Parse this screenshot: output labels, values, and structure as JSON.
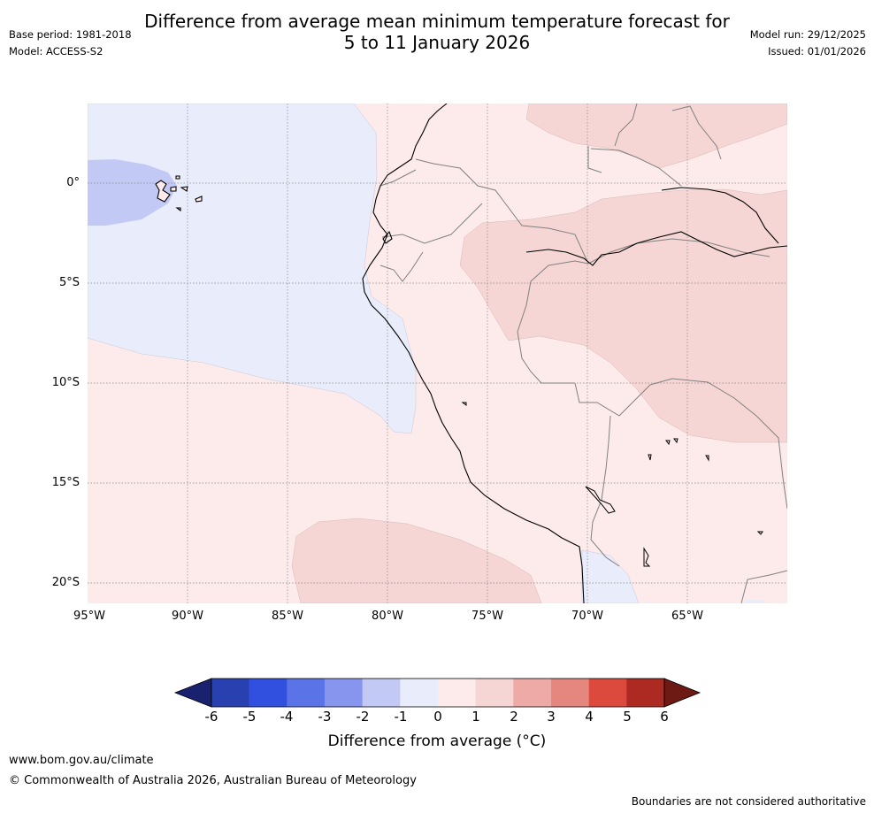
{
  "header": {
    "title_line1": "Difference from average mean minimum temperature forecast for",
    "title_line2": "5 to 11 January 2026",
    "base_period": "Base period: 1981-2018",
    "model": "Model: ACCESS-S2",
    "model_run": "Model run: 29/12/2025",
    "issued": "Issued: 01/01/2026"
  },
  "map": {
    "lat_labels": [
      "0°",
      "5°S",
      "10°S",
      "15°S",
      "20°S"
    ],
    "lon_labels": [
      "95°W",
      "90°W",
      "85°W",
      "80°W",
      "75°W",
      "70°W",
      "65°W"
    ]
  },
  "colorbar": {
    "ticks": [
      "-6",
      "-5",
      "-4",
      "-3",
      "-2",
      "-1",
      "0",
      "1",
      "2",
      "3",
      "4",
      "5",
      "6"
    ],
    "colors": [
      "#1a2270",
      "#2840b0",
      "#3150e0",
      "#5a74e8",
      "#8795ee",
      "#c2c9f5",
      "#e9ecfb",
      "#fcebea",
      "#f5d6d4",
      "#eeaaa6",
      "#e5877f",
      "#dc4a3e",
      "#ad2a22",
      "#6e1a14"
    ],
    "title": "Difference from average (°C)"
  },
  "footer": {
    "url": "www.bom.gov.au/climate",
    "copyright": "© Commonwealth of Australia 2026, Australian Bureau of Meteorology",
    "disclaimer": "Boundaries are not considered authoritative"
  }
}
